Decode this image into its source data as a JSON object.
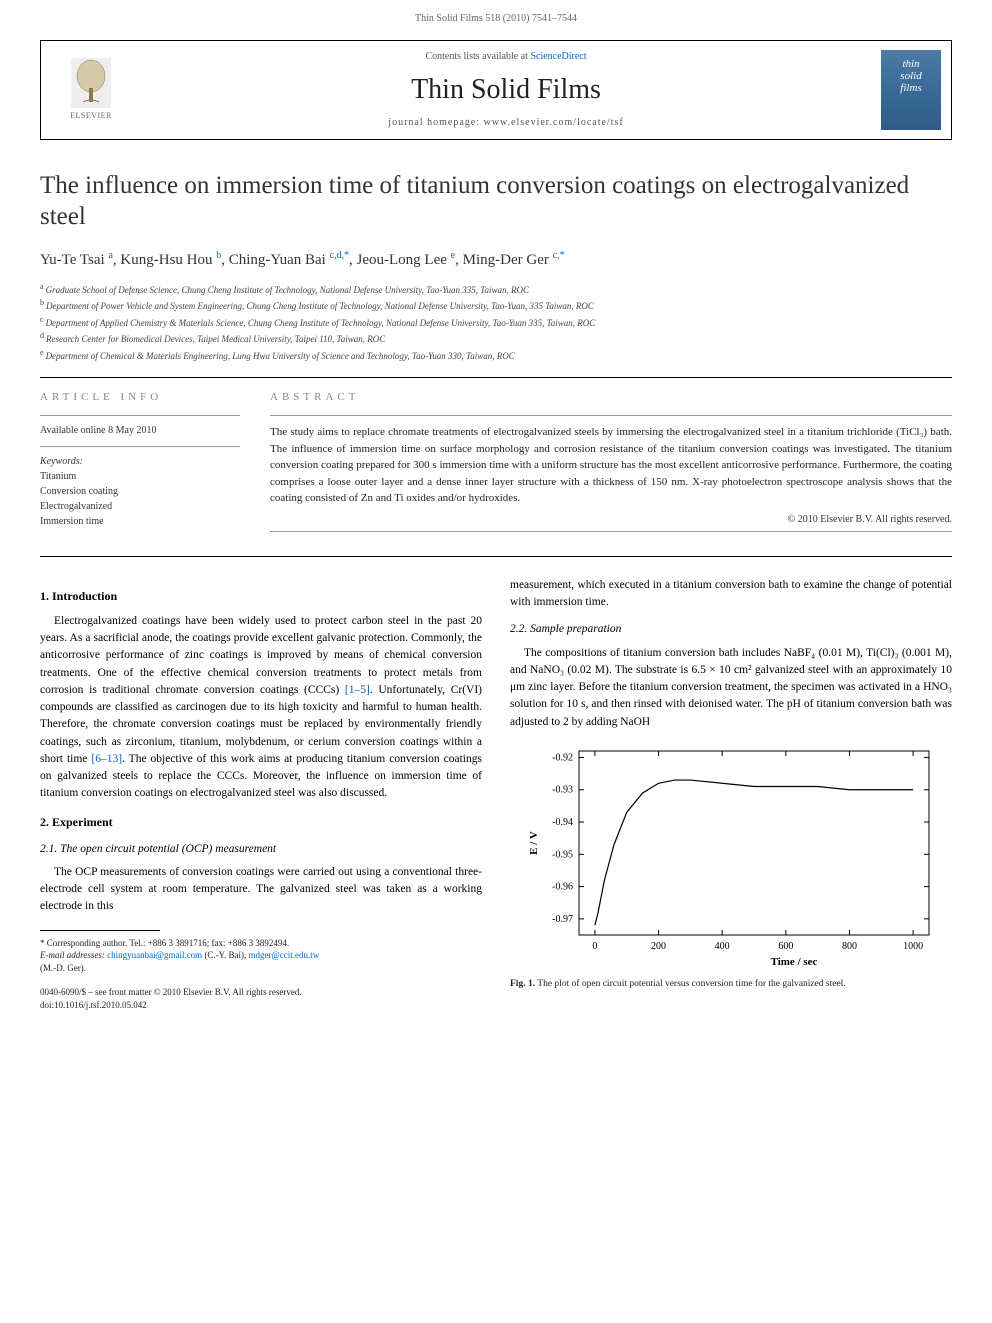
{
  "page_header": "Thin Solid Films 518 (2010) 7541–7544",
  "banner": {
    "contents_prefix": "Contents lists available at ",
    "contents_link": "ScienceDirect",
    "journal_name": "Thin Solid Films",
    "homepage_prefix": "journal homepage: ",
    "homepage_url": "www.elsevier.com/locate/tsf",
    "elsevier_label": "ELSEVIER",
    "cover_line1": "thin",
    "cover_line2": "solid",
    "cover_line3": "films"
  },
  "title": "The influence on immersion time of titanium conversion coatings on electrogalvanized steel",
  "authors": [
    {
      "name": "Yu-Te Tsai",
      "aff": "a"
    },
    {
      "name": "Kung-Hsu Hou",
      "aff": "b"
    },
    {
      "name": "Ching-Yuan Bai",
      "aff": "c,d",
      "corr": true
    },
    {
      "name": "Jeou-Long Lee",
      "aff": "e"
    },
    {
      "name": "Ming-Der Ger",
      "aff": "c",
      "corr": true
    }
  ],
  "affiliations": [
    {
      "sup": "a",
      "text": "Graduate School of Defense Science, Chung Cheng Institute of Technology, National Defense University, Tao-Yuan 335, Taiwan, ROC"
    },
    {
      "sup": "b",
      "text": "Department of Power Vehicle and System Engineering, Chung Cheng Institute of Technology, National Defense University, Tao-Yuan, 335 Taiwan, ROC"
    },
    {
      "sup": "c",
      "text": "Department of Applied Chemistry & Materials Science, Chung Cheng Institute of Technology, National Defense University, Tao-Yuan 335, Taiwan, ROC"
    },
    {
      "sup": "d",
      "text": "Research Center for Biomedical Devices, Taipei Medical University, Taipei 110, Taiwan, ROC"
    },
    {
      "sup": "e",
      "text": "Department of Chemical & Materials Engineering, Lung Hwa University of Science and Technology, Tao-Yuan 330, Taiwan, ROC"
    }
  ],
  "article_info": {
    "label": "ARTICLE INFO",
    "available": "Available online 8 May 2010",
    "keywords_label": "Keywords:",
    "keywords": [
      "Titanium",
      "Conversion coating",
      "Electrogalvanized",
      "Immersion time"
    ]
  },
  "abstract": {
    "label": "ABSTRACT",
    "text": "The study aims to replace chromate treatments of electrogalvanized steels by immersing the electrogalvanized steel in a titanium trichloride (TiCl₃) bath. The influence of immersion time on surface morphology and corrosion resistance of the titanium conversion coatings was investigated. The titanium conversion coating prepared for 300 s immersion time with a uniform structure has the most excellent anticorrosive performance. Furthermore, the coating comprises a loose outer layer and a dense inner layer structure with a thickness of 150 nm. X-ray photoelectron spectroscope analysis shows that the coating consisted of Zn and Ti oxides and/or hydroxides.",
    "copyright": "© 2010 Elsevier B.V. All rights reserved."
  },
  "body": {
    "left": {
      "h1": "1. Introduction",
      "p1": "Electrogalvanized coatings have been widely used to protect carbon steel in the past 20 years. As a sacrificial anode, the coatings provide excellent galvanic protection. Commonly, the anticorrosive performance of zinc coatings is improved by means of chemical conversion treatments. One of the effective chemical conversion treatments to protect metals from corrosion is traditional chromate conversion coatings (CCCs) ",
      "ref1": "[1–5]",
      "p1b": ". Unfortunately, Cr(VI) compounds are classified as carcinogen due to its high toxicity and harmful to human health. Therefore, the chromate conversion coatings must be replaced by environmentally friendly coatings, such as zirconium, titanium, molybdenum, or cerium conversion coatings within a short time ",
      "ref2": "[6–13]",
      "p1c": ". The objective of this work aims at producing titanium conversion coatings on galvanized steels to replace the CCCs. Moreover, the influence on immersion time of titanium conversion coatings on electrogalvanized steel was also discussed.",
      "h2": "2. Experiment",
      "h21": "2.1. The open circuit potential (OCP) measurement",
      "p2": "The OCP measurements of conversion coatings were carried out using a conventional three-electrode cell system at room temperature. The galvanized steel was taken as a working electrode in this",
      "fn_corr": "* Corresponding author. Tel.: +886 3 3891716; fax: +886 3 3892494.",
      "fn_email_label": "E-mail addresses: ",
      "fn_email1": "chingyuanbai@gmail.com",
      "fn_email1_who": " (C.-Y. Bai), ",
      "fn_email2": "mdger@ccit.edu.tw",
      "fn_email2_who": "(M.-D. Ger).",
      "doi_line1": "0040-6090/$ – see front matter © 2010 Elsevier B.V. All rights reserved.",
      "doi_line2": "doi:10.1016/j.tsf.2010.05.042"
    },
    "right": {
      "p0": "measurement, which executed in a titanium conversion bath to examine the change of potential with immersion time.",
      "h22": "2.2. Sample preparation",
      "p3": "The compositions of titanium conversion bath includes NaBF₄ (0.01 M), Ti(Cl)₃ (0.001 M), and NaNO₃ (0.02 M). The substrate is 6.5 × 10 cm² galvanized steel with an approximately 10 μm zinc layer. Before the titanium conversion treatment, the specimen was activated in a HNO₃ solution for 10 s, and then rinsed with deionised water. The pH of titanium conversion bath was adjusted to 2 by adding NaOH"
    }
  },
  "figure1": {
    "caption_bold": "Fig. 1.",
    "caption_text": " The plot of open circuit potential versus conversion time for the galvanized steel.",
    "xlabel": "Time / sec",
    "ylabel": "E / V",
    "xlim": [
      -50,
      1050
    ],
    "ylim": [
      -0.975,
      -0.918
    ],
    "xticks": [
      0,
      200,
      400,
      600,
      800,
      1000
    ],
    "yticks": [
      -0.97,
      -0.96,
      -0.95,
      -0.94,
      -0.93,
      -0.92
    ],
    "ytick_labels": [
      "-0.97",
      "-0.96",
      "-0.95",
      "-0.94",
      "-0.93",
      "-0.92"
    ],
    "data_x": [
      0,
      10,
      30,
      60,
      100,
      150,
      200,
      250,
      300,
      400,
      500,
      600,
      700,
      800,
      900,
      1000
    ],
    "data_y": [
      -0.972,
      -0.968,
      -0.958,
      -0.947,
      -0.937,
      -0.931,
      -0.928,
      -0.927,
      -0.927,
      -0.928,
      -0.929,
      -0.929,
      -0.929,
      -0.93,
      -0.93,
      -0.93
    ],
    "axis_color": "#000000",
    "line_color": "#000000",
    "line_width": 1.2,
    "background": "#ffffff",
    "label_fontsize": 11,
    "tick_fontsize": 10
  }
}
